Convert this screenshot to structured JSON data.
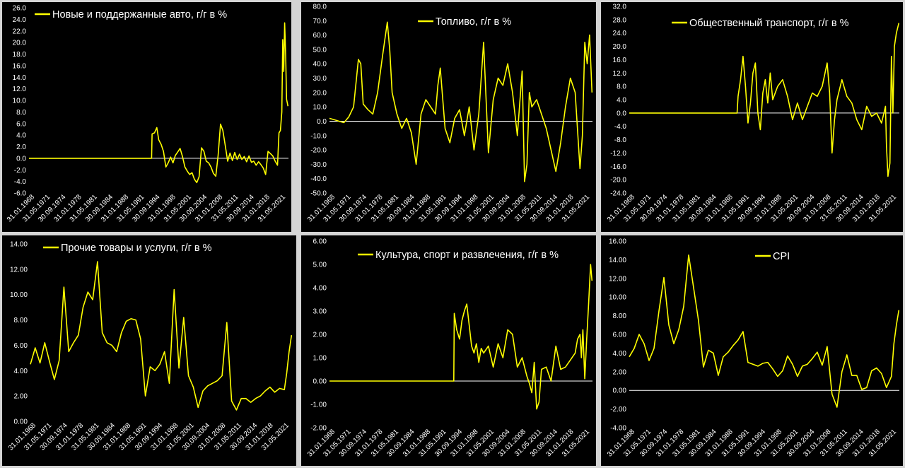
{
  "colors": {
    "background": "#000000",
    "line": "#ffff00",
    "text": "#ffffff",
    "zero_line": "#ffffff",
    "border": "#d4d4d4"
  },
  "x_ticks": [
    "31.01.1968",
    "31.05.1971",
    "30.09.1974",
    "31.01.1978",
    "31.05.1981",
    "30.09.1984",
    "31.01.1988",
    "31.05.1991",
    "30.09.1994",
    "31.01.1998",
    "31.05.2001",
    "30.09.2004",
    "31.01.2008",
    "31.05.2011",
    "30.09.2014",
    "31.01.2018",
    "31.05.2021"
  ],
  "chart_data": [
    {
      "type": "line",
      "legend": "Новые и поддержанные авто, г/г в %",
      "legend_position": "top-left",
      "grid": false,
      "ylim": [
        -6,
        26
      ],
      "y_ticks": [
        "26.0",
        "24.0",
        "22.0",
        "20.0",
        "18.0",
        "16.0",
        "14.0",
        "12.0",
        "10.0",
        "8.0",
        "6.0",
        "4.0",
        "2.0",
        "0.0",
        "-2.0",
        "-4.0",
        "-6.0"
      ],
      "x_range": [
        1968.0,
        2022.6
      ],
      "x_tick_labels": [
        "31.01.1968",
        "31.05.1971",
        "30.09.1974",
        "31.01.1978",
        "31.05.1981",
        "30.09.1984",
        "31.01.1988",
        "31.05.1991",
        "30.09.1994",
        "31.01.1998",
        "31.05.2001",
        "30.09.2004",
        "31.01.2008",
        "31.05.2011",
        "30.09.2014",
        "31.01.2018",
        "31.05.2021"
      ],
      "x": [
        1968,
        1993.8,
        1993.9,
        1994.4,
        1994.9,
        1995.3,
        1995.8,
        1996.3,
        1996.8,
        1997.3,
        1997.8,
        1998.3,
        1998.8,
        1999.3,
        1999.8,
        2000.3,
        2000.8,
        2001.3,
        2001.8,
        2002.3,
        2002.8,
        2003.3,
        2003.8,
        2004.3,
        2004.8,
        2005.3,
        2005.8,
        2006.3,
        2006.8,
        2007.3,
        2007.8,
        2008.3,
        2008.8,
        2009.3,
        2009.8,
        2010.3,
        2010.8,
        2011.3,
        2011.8,
        2012.3,
        2012.8,
        2013.3,
        2013.8,
        2014.3,
        2014.8,
        2015.3,
        2015.8,
        2016.3,
        2016.8,
        2017.3,
        2017.8,
        2018.3,
        2018.8,
        2019.3,
        2019.8,
        2020.3,
        2020.6,
        2020.9,
        2021.2,
        2021.4,
        2021.6,
        2021.8,
        2022.0,
        2022.2,
        2022.5
      ],
      "y": [
        0,
        0,
        4.2,
        4.4,
        5.3,
        3.2,
        2.4,
        1.2,
        -1.5,
        -0.8,
        0.2,
        -0.8,
        0.5,
        1.1,
        1.7,
        0.3,
        -1.5,
        -2.2,
        -2.8,
        -2.5,
        -3.6,
        -4.2,
        -3.2,
        1.8,
        1.2,
        -0.5,
        -0.8,
        -1.5,
        -2.6,
        -3.1,
        0.5,
        5.9,
        4.8,
        2.2,
        -0.5,
        0.9,
        -0.4,
        1.0,
        -0.2,
        0.7,
        -0.2,
        0.3,
        -0.6,
        0.4,
        -0.7,
        -0.5,
        -1.2,
        -0.6,
        -1.1,
        -1.7,
        -2.8,
        1.2,
        0.8,
        0.4,
        -0.5,
        -1.2,
        4.4,
        4.8,
        8.0,
        20.5,
        15.0,
        23.4,
        18.0,
        10.2,
        9.0
      ]
    },
    {
      "type": "line",
      "legend": "Топливо, г/г в %",
      "legend_position": "top-center",
      "grid": false,
      "ylim": [
        -50,
        80
      ],
      "y_ticks": [
        "80.0",
        "70.0",
        "60.0",
        "50.0",
        "40.0",
        "30.0",
        "20.0",
        "10.0",
        "0.0",
        "-10.0",
        "-20.0",
        "-30.0",
        "-40.0",
        "-50.0"
      ],
      "x_range": [
        1968.0,
        2022.6
      ],
      "x_tick_labels": [
        "31.01.1968",
        "31.05.1971",
        "30.09.1974",
        "31.01.1978",
        "31.05.1981",
        "30.09.1984",
        "31.01.1988",
        "31.05.1991",
        "30.09.1994",
        "31.01.1998",
        "31.05.2001",
        "30.09.2004",
        "31.01.2008",
        "31.05.2011",
        "30.09.2014",
        "31.01.2018",
        "31.05.2021"
      ],
      "x": [
        1968,
        1969,
        1970,
        1971,
        1972,
        1973,
        1974,
        1974.5,
        1975,
        1976,
        1977,
        1978,
        1979,
        1980,
        1980.5,
        1981,
        1982,
        1983,
        1984,
        1985,
        1986,
        1987,
        1988,
        1989,
        1990,
        1990.5,
        1991,
        1992,
        1993,
        1994,
        1995,
        1996,
        1997,
        1998,
        1999,
        2000,
        2001,
        2002,
        2003,
        2004,
        2005,
        2006,
        2007,
        2008,
        2008.5,
        2009,
        2009.5,
        2010,
        2011,
        2012,
        2013,
        2014,
        2015,
        2016,
        2017,
        2018,
        2019,
        2020,
        2020.5,
        2021,
        2021.5,
        2022,
        2022.5
      ],
      "y": [
        2,
        1,
        0,
        -1,
        3,
        10,
        43,
        40,
        12,
        8,
        5,
        20,
        45,
        69,
        50,
        20,
        5,
        -5,
        2,
        -8,
        -30,
        5,
        15,
        10,
        5,
        25,
        37,
        -5,
        -15,
        2,
        8,
        -10,
        10,
        -20,
        5,
        55,
        -22,
        15,
        30,
        25,
        40,
        20,
        -10,
        35,
        -42,
        -30,
        20,
        10,
        15,
        5,
        -5,
        -20,
        -35,
        -15,
        10,
        30,
        20,
        -33,
        -10,
        55,
        40,
        60,
        20
      ]
    },
    {
      "type": "line",
      "legend": "Общественный транспорт, г/г в %",
      "legend_position": "top-right",
      "grid": false,
      "ylim": [
        -24,
        32
      ],
      "y_ticks": [
        "32.0",
        "28.0",
        "24.0",
        "20.0",
        "16.0",
        "12.0",
        "8.0",
        "4.0",
        "0.0",
        "-4.0",
        "-8.0",
        "-12.0",
        "-16.0",
        "-20.0",
        "-24.0"
      ],
      "x_range": [
        1968.0,
        2022.6
      ],
      "x_tick_labels": [
        "31.01.1968",
        "31.05.1971",
        "30.09.1974",
        "31.01.1978",
        "31.05.1981",
        "30.09.1984",
        "31.01.1988",
        "31.05.1991",
        "30.09.1994",
        "31.01.1998",
        "31.05.2001",
        "30.09.2004",
        "31.01.2008",
        "31.05.2011",
        "30.09.2014",
        "31.01.2018",
        "31.05.2021"
      ],
      "x": [
        1968,
        1989.8,
        1990,
        1990.5,
        1991,
        1991.5,
        1992,
        1992.5,
        1993,
        1993.5,
        1994,
        1994.5,
        1995,
        1995.5,
        1996,
        1996.5,
        1997,
        1998,
        1999,
        2000,
        2001,
        2002,
        2003,
        2004,
        2005,
        2006,
        2007,
        2008,
        2008.5,
        2009,
        2009.5,
        2010,
        2011,
        2012,
        2013,
        2014,
        2015,
        2016,
        2017,
        2018,
        2019,
        2019.8,
        2020,
        2020.3,
        2020.7,
        2021,
        2021.3,
        2021.6,
        2022,
        2022.5
      ],
      "y": [
        0,
        0,
        5,
        10,
        17,
        8,
        -3,
        3,
        12,
        15,
        0,
        -5,
        6,
        10,
        3,
        12,
        4,
        8,
        10,
        5,
        -2,
        3,
        -2,
        2,
        6,
        5,
        8,
        15,
        6,
        -12,
        -2,
        4,
        10,
        5,
        3,
        -2,
        -5,
        2,
        -1,
        0,
        -3,
        2,
        -10,
        -19,
        -15,
        17,
        0,
        20,
        24,
        27
      ]
    },
    {
      "type": "line",
      "legend": "Прочие товары и услуги, г/г в %",
      "legend_position": "top-left",
      "grid": false,
      "ylim": [
        0,
        14
      ],
      "y_ticks": [
        "14.00",
        "12.00",
        "10.00",
        "8.00",
        "6.00",
        "4.00",
        "2.00",
        "0.00"
      ],
      "x_range": [
        1968.0,
        2022.6
      ],
      "x_tick_labels": [
        "31.01.1968",
        "31.05.1971",
        "30.09.1974",
        "31.01.1978",
        "31.05.1981",
        "30.09.1984",
        "31.01.1988",
        "31.05.1991",
        "30.09.1994",
        "31.01.1998",
        "31.05.2001",
        "30.09.2004",
        "31.01.2008",
        "31.05.2011",
        "30.09.2014",
        "31.01.2018",
        "31.05.2021"
      ],
      "x": [
        1968,
        1969,
        1970,
        1971,
        1972,
        1973,
        1974,
        1975,
        1976,
        1977,
        1978,
        1979,
        1980,
        1981,
        1982,
        1983,
        1984,
        1985,
        1986,
        1987,
        1988,
        1989,
        1990,
        1991,
        1992,
        1993,
        1994,
        1995,
        1996,
        1997,
        1998,
        1999,
        2000,
        2001,
        2002,
        2003,
        2004,
        2005,
        2006,
        2007,
        2008,
        2009,
        2010,
        2011,
        2012,
        2013,
        2014,
        2015,
        2016,
        2017,
        2018,
        2019,
        2020,
        2021,
        2021.5,
        2022,
        2022.5
      ],
      "y": [
        4.5,
        5.8,
        4.6,
        6.2,
        4.7,
        3.3,
        4.8,
        10.6,
        5.5,
        6.2,
        6.8,
        9.0,
        10.2,
        9.6,
        12.6,
        7.0,
        6.2,
        6.0,
        5.5,
        7.0,
        7.9,
        8.1,
        8.0,
        6.5,
        2.0,
        4.3,
        4.0,
        4.5,
        5.5,
        3.0,
        10.4,
        4.2,
        8.2,
        3.6,
        2.7,
        1.1,
        2.4,
        2.8,
        3.0,
        3.2,
        3.6,
        7.8,
        1.6,
        0.9,
        1.8,
        1.8,
        1.5,
        1.8,
        2.0,
        2.4,
        2.7,
        2.3,
        2.6,
        2.5,
        3.8,
        5.5,
        6.8
      ]
    },
    {
      "type": "line",
      "legend": "Культура, спорт и развлечения, г/г в %",
      "legend_position": "top-center",
      "grid": false,
      "ylim": [
        -2,
        6
      ],
      "y_ticks": [
        "6.00",
        "5.00",
        "4.00",
        "3.00",
        "2.00",
        "1.00",
        "0.00",
        "-1.00",
        "-2.00"
      ],
      "x_range": [
        1968.0,
        2022.6
      ],
      "x_tick_labels": [
        "31.01.1968",
        "31.05.1971",
        "30.09.1974",
        "31.01.1978",
        "31.05.1981",
        "30.09.1984",
        "31.01.1988",
        "31.05.1991",
        "30.09.1994",
        "31.01.1998",
        "31.05.2001",
        "30.09.2004",
        "31.01.2008",
        "31.05.2011",
        "30.09.2014",
        "31.01.2018",
        "31.05.2021"
      ],
      "x": [
        1968,
        1993.8,
        1993.9,
        1994.4,
        1995,
        1995.5,
        1996,
        1996.5,
        1997,
        1997.5,
        1998,
        1998.5,
        1999,
        1999.5,
        2000,
        2001,
        2002,
        2003,
        2004,
        2005,
        2006,
        2007,
        2008,
        2009,
        2009.5,
        2010,
        2010.5,
        2011,
        2011.5,
        2012,
        2013,
        2014,
        2015,
        2016,
        2017,
        2018,
        2019,
        2019.5,
        2020,
        2020.3,
        2020.6,
        2021,
        2021.4,
        2021.8,
        2022.2,
        2022.5
      ],
      "y": [
        0,
        0,
        2.9,
        2.2,
        1.8,
        2.6,
        3.0,
        3.3,
        2.4,
        1.5,
        1.2,
        1.6,
        0.8,
        1.4,
        1.2,
        1.5,
        0.6,
        1.6,
        1.0,
        2.2,
        2.0,
        0.6,
        1.0,
        0.2,
        -0.1,
        -0.5,
        0.8,
        -1.2,
        -0.9,
        0.5,
        0.6,
        0.0,
        1.5,
        0.5,
        0.6,
        0.9,
        1.2,
        1.8,
        2.0,
        1.0,
        2.2,
        0.1,
        1.8,
        3.3,
        5.0,
        4.3
      ]
    },
    {
      "type": "line",
      "legend": "CPI",
      "legend_position": "top-center",
      "grid": false,
      "ylim": [
        -4,
        16
      ],
      "y_ticks": [
        "16.00",
        "14.00",
        "12.00",
        "10.00",
        "8.00",
        "6.00",
        "4.00",
        "2.00",
        "0.00",
        "-2.00",
        "-4.00"
      ],
      "x_range": [
        1968.0,
        2022.6
      ],
      "x_tick_labels": [
        "31.01.1968",
        "31.05.1971",
        "30.09.1974",
        "31.01.1978",
        "31.05.1981",
        "30.09.1984",
        "31.01.1988",
        "31.05.1991",
        "30.09.1994",
        "31.01.1998",
        "31.05.2001",
        "30.09.2004",
        "31.01.2008",
        "31.05.2011",
        "30.09.2014",
        "31.01.2018",
        "31.05.2021"
      ],
      "x": [
        1968,
        1969,
        1970,
        1971,
        1972,
        1973,
        1974,
        1975,
        1976,
        1977,
        1978,
        1979,
        1980,
        1981,
        1982,
        1983,
        1984,
        1985,
        1986,
        1987,
        1988,
        1989,
        1990,
        1991,
        1992,
        1993,
        1994,
        1995,
        1996,
        1997,
        1998,
        1999,
        2000,
        2001,
        2002,
        2003,
        2004,
        2005,
        2006,
        2007,
        2008,
        2009,
        2010,
        2011,
        2012,
        2013,
        2014,
        2015,
        2016,
        2017,
        2018,
        2019,
        2020,
        2021,
        2021.5,
        2022,
        2022.5
      ],
      "y": [
        3.6,
        4.5,
        6.0,
        5.0,
        3.2,
        4.5,
        8.5,
        12.1,
        7.0,
        5.0,
        6.5,
        9.0,
        14.5,
        11.0,
        7.5,
        2.5,
        4.3,
        4.0,
        1.6,
        3.6,
        4.1,
        4.8,
        5.4,
        6.3,
        3.0,
        2.8,
        2.6,
        2.9,
        3.0,
        2.3,
        1.5,
        2.1,
        3.7,
        2.8,
        1.5,
        2.6,
        2.8,
        3.4,
        4.1,
        2.7,
        4.7,
        -0.4,
        -1.8,
        2.0,
        3.8,
        1.6,
        1.6,
        0.1,
        0.3,
        2.1,
        2.4,
        1.8,
        0.3,
        1.5,
        5.0,
        7.0,
        8.6
      ]
    }
  ]
}
